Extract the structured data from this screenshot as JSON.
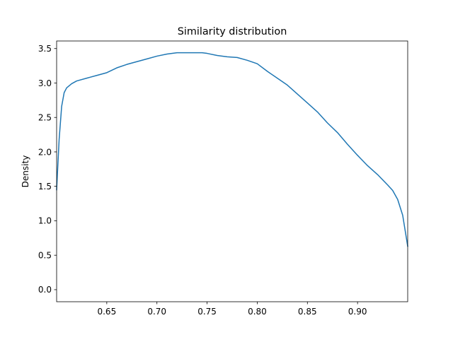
{
  "chart_data": {
    "type": "line",
    "title": "Similarity distribution",
    "xlabel": "",
    "ylabel": "Density",
    "xlim": [
      0.6,
      0.95
    ],
    "ylim": [
      -0.175,
      3.61
    ],
    "xticks": [
      0.65,
      0.7,
      0.75,
      0.8,
      0.85,
      0.9
    ],
    "xtick_labels": [
      "0.65",
      "0.70",
      "0.75",
      "0.80",
      "0.85",
      "0.90"
    ],
    "yticks": [
      0.0,
      0.5,
      1.0,
      1.5,
      2.0,
      2.5,
      3.0,
      3.5
    ],
    "ytick_labels": [
      "0.0",
      "0.5",
      "1.0",
      "1.5",
      "2.0",
      "2.5",
      "3.0",
      "3.5"
    ],
    "grid": false,
    "legend": null,
    "series": [
      {
        "name": "density",
        "color": "#1f77b4",
        "x": [
          0.6,
          0.6025,
          0.605,
          0.6075,
          0.61,
          0.615,
          0.62,
          0.63,
          0.64,
          0.65,
          0.66,
          0.67,
          0.68,
          0.69,
          0.7,
          0.71,
          0.72,
          0.73,
          0.74,
          0.745,
          0.75,
          0.76,
          0.77,
          0.78,
          0.79,
          0.8,
          0.81,
          0.82,
          0.83,
          0.84,
          0.85,
          0.86,
          0.87,
          0.88,
          0.89,
          0.9,
          0.91,
          0.92,
          0.93,
          0.935,
          0.94,
          0.945,
          0.95
        ],
        "y": [
          1.45,
          2.18,
          2.66,
          2.86,
          2.93,
          2.99,
          3.03,
          3.07,
          3.11,
          3.15,
          3.22,
          3.27,
          3.31,
          3.35,
          3.39,
          3.42,
          3.44,
          3.44,
          3.44,
          3.44,
          3.43,
          3.4,
          3.38,
          3.37,
          3.33,
          3.28,
          3.17,
          3.07,
          2.97,
          2.84,
          2.71,
          2.58,
          2.42,
          2.28,
          2.11,
          1.95,
          1.8,
          1.67,
          1.52,
          1.44,
          1.31,
          1.08,
          0.63
        ]
      }
    ]
  }
}
